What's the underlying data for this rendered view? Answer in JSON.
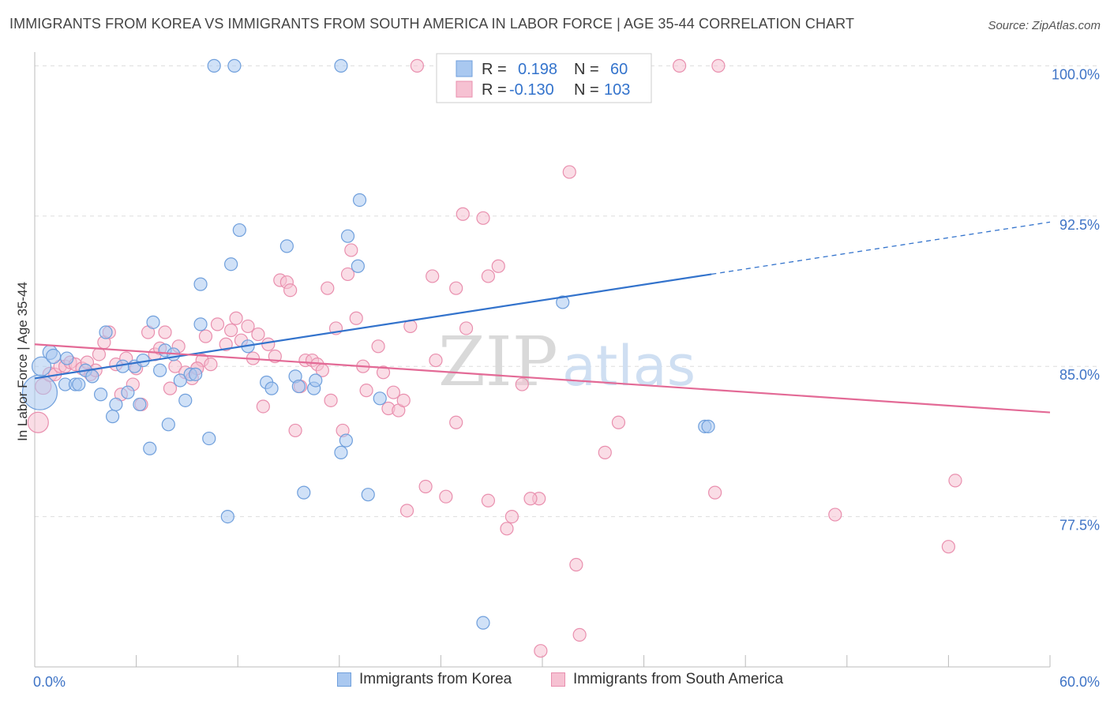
{
  "title": "IMMIGRANTS FROM KOREA VS IMMIGRANTS FROM SOUTH AMERICA IN LABOR FORCE | AGE 35-44 CORRELATION CHART",
  "source": "Source: ZipAtlas.com",
  "watermark": {
    "part1": "ZIP",
    "part2": "atlas"
  },
  "colors": {
    "korea_fill": "#a9c8f0",
    "korea_stroke": "#6f9fdc",
    "korea_line": "#3373cc",
    "sa_fill": "#f6c1d2",
    "sa_stroke": "#e98fae",
    "sa_line": "#e36a96",
    "tick_label": "#3f74c6",
    "grid": "#dddddd"
  },
  "legend": {
    "rows": [
      {
        "r_label": "R =",
        "r_value": "0.198",
        "n_label": "N =",
        "n_value": "60",
        "series": "korea"
      },
      {
        "r_label": "R =",
        "r_value": "-0.130",
        "n_label": "N =",
        "n_value": "103",
        "series": "sa"
      }
    ]
  },
  "chart_data": {
    "type": "scatter",
    "title": "IMMIGRANTS FROM KOREA VS IMMIGRANTS FROM SOUTH AMERICA IN LABOR FORCE | AGE 35-44 CORRELATION CHART",
    "xlabel": "",
    "ylabel": "In Labor Force | Age 35-44",
    "xlim": [
      0,
      60
    ],
    "ylim": [
      70.0,
      101.0
    ],
    "x_tick_labels": [
      "0.0%",
      "60.0%"
    ],
    "y_ticks": [
      77.5,
      85.0,
      92.5,
      100.0
    ],
    "y_tick_labels": [
      "77.5%",
      "85.0%",
      "92.5%",
      "100.0%"
    ],
    "grid": true,
    "legend_position": "bottom-center",
    "series": [
      {
        "name": "Immigrants from Korea",
        "key": "korea",
        "r": 0.198,
        "n": 60,
        "trend": {
          "x0": 0,
          "y0": 84.4,
          "x1": 40,
          "y1": 89.6,
          "dashed_to_x": 60,
          "dashed_to_y": 92.2
        },
        "points": [
          [
            0.3,
            83.7,
            22
          ],
          [
            0.4,
            85.0,
            12
          ],
          [
            0.9,
            85.7,
            9
          ],
          [
            1.1,
            85.5,
            9
          ],
          [
            1.9,
            85.4,
            8
          ],
          [
            1.8,
            84.1,
            8
          ],
          [
            2.4,
            84.1,
            8
          ],
          [
            2.6,
            84.1,
            8
          ],
          [
            3.0,
            84.8,
            8
          ],
          [
            3.4,
            84.5,
            8
          ],
          [
            3.9,
            83.6,
            8
          ],
          [
            4.2,
            86.7,
            8
          ],
          [
            4.6,
            82.5,
            8
          ],
          [
            4.8,
            83.1,
            8
          ],
          [
            5.2,
            85.0,
            8
          ],
          [
            5.5,
            83.7,
            8
          ],
          [
            5.9,
            85.0,
            8
          ],
          [
            6.2,
            83.1,
            8
          ],
          [
            6.4,
            85.3,
            8
          ],
          [
            6.8,
            80.9,
            8
          ],
          [
            7.0,
            87.2,
            8
          ],
          [
            7.4,
            84.8,
            8
          ],
          [
            7.7,
            85.8,
            8
          ],
          [
            7.9,
            82.1,
            8
          ],
          [
            8.2,
            85.6,
            8
          ],
          [
            8.6,
            84.3,
            8
          ],
          [
            8.9,
            83.3,
            8
          ],
          [
            9.2,
            84.6,
            8
          ],
          [
            9.5,
            84.6,
            8
          ],
          [
            9.8,
            89.1,
            8
          ],
          [
            9.8,
            87.1,
            8
          ],
          [
            10.3,
            81.4,
            8
          ],
          [
            10.6,
            100.0,
            8
          ],
          [
            11.4,
            77.5,
            8
          ],
          [
            11.6,
            90.1,
            8
          ],
          [
            11.8,
            100.0,
            8
          ],
          [
            12.1,
            91.8,
            8
          ],
          [
            12.6,
            86.0,
            8
          ],
          [
            13.7,
            84.2,
            8
          ],
          [
            14.0,
            83.9,
            8
          ],
          [
            14.9,
            91.0,
            8
          ],
          [
            15.4,
            84.5,
            8
          ],
          [
            15.6,
            84.0,
            8
          ],
          [
            15.9,
            78.7,
            8
          ],
          [
            16.5,
            83.9,
            8
          ],
          [
            16.6,
            84.3,
            8
          ],
          [
            18.1,
            100.0,
            8
          ],
          [
            18.1,
            80.7,
            8
          ],
          [
            18.4,
            81.3,
            8
          ],
          [
            18.5,
            91.5,
            8
          ],
          [
            19.1,
            90.0,
            8
          ],
          [
            19.2,
            93.3,
            8
          ],
          [
            19.7,
            78.6,
            8
          ],
          [
            20.4,
            83.4,
            8
          ],
          [
            25.4,
            100.0,
            8
          ],
          [
            26.5,
            72.2,
            8
          ],
          [
            31.2,
            88.2,
            8
          ],
          [
            33.6,
            100.0,
            8
          ],
          [
            39.6,
            82.0,
            8
          ],
          [
            39.8,
            82.0,
            1
          ]
        ]
      },
      {
        "name": "Immigrants from South America",
        "key": "sa",
        "r": -0.13,
        "n": 103,
        "trend": {
          "x0": 0,
          "y0": 86.1,
          "x1": 60,
          "y1": 82.7
        },
        "points": [
          [
            0.2,
            82.2,
            13
          ],
          [
            0.5,
            84.0,
            10
          ],
          [
            0.9,
            84.6,
            9
          ],
          [
            1.2,
            84.6,
            8
          ],
          [
            1.5,
            85.0,
            8
          ],
          [
            1.8,
            85.0,
            8
          ],
          [
            2.1,
            85.2,
            8
          ],
          [
            2.4,
            85.1,
            8
          ],
          [
            2.8,
            84.9,
            8
          ],
          [
            3.1,
            85.2,
            8
          ],
          [
            3.3,
            84.6,
            8
          ],
          [
            3.6,
            84.8,
            8
          ],
          [
            3.8,
            85.6,
            8
          ],
          [
            4.1,
            86.2,
            8
          ],
          [
            4.4,
            86.7,
            8
          ],
          [
            4.8,
            85.1,
            8
          ],
          [
            5.1,
            83.6,
            8
          ],
          [
            5.4,
            85.4,
            8
          ],
          [
            5.8,
            84.1,
            8
          ],
          [
            6.0,
            84.9,
            8
          ],
          [
            6.3,
            83.1,
            8
          ],
          [
            6.7,
            86.7,
            8
          ],
          [
            7.1,
            85.6,
            8
          ],
          [
            7.4,
            85.9,
            8
          ],
          [
            7.7,
            86.7,
            8
          ],
          [
            8.0,
            83.9,
            8
          ],
          [
            8.3,
            85.0,
            8
          ],
          [
            8.5,
            86.0,
            8
          ],
          [
            8.9,
            84.7,
            8
          ],
          [
            9.3,
            84.4,
            8
          ],
          [
            9.6,
            84.9,
            8
          ],
          [
            9.9,
            85.3,
            8
          ],
          [
            10.1,
            86.5,
            8
          ],
          [
            10.4,
            85.1,
            8
          ],
          [
            10.8,
            87.1,
            8
          ],
          [
            11.3,
            86.1,
            8
          ],
          [
            11.6,
            86.8,
            8
          ],
          [
            11.9,
            87.4,
            8
          ],
          [
            12.2,
            86.3,
            8
          ],
          [
            12.6,
            87.0,
            8
          ],
          [
            12.9,
            85.4,
            8
          ],
          [
            13.2,
            86.6,
            8
          ],
          [
            13.5,
            83.0,
            8
          ],
          [
            13.8,
            86.1,
            8
          ],
          [
            14.2,
            85.5,
            8
          ],
          [
            14.5,
            89.3,
            8
          ],
          [
            14.9,
            89.2,
            8
          ],
          [
            15.1,
            88.8,
            8
          ],
          [
            15.4,
            81.8,
            8
          ],
          [
            15.7,
            84.0,
            8
          ],
          [
            16.0,
            85.3,
            8
          ],
          [
            16.4,
            85.3,
            8
          ],
          [
            16.7,
            85.1,
            8
          ],
          [
            17.0,
            84.8,
            8
          ],
          [
            17.3,
            88.9,
            8
          ],
          [
            17.5,
            83.3,
            8
          ],
          [
            17.8,
            86.9,
            8
          ],
          [
            18.2,
            81.8,
            8
          ],
          [
            18.5,
            89.6,
            8
          ],
          [
            18.7,
            90.8,
            8
          ],
          [
            19.0,
            87.4,
            8
          ],
          [
            19.4,
            85.0,
            8
          ],
          [
            19.6,
            83.8,
            8
          ],
          [
            20.3,
            86.0,
            8
          ],
          [
            20.6,
            84.7,
            8
          ],
          [
            20.9,
            82.9,
            8
          ],
          [
            21.2,
            83.7,
            8
          ],
          [
            21.5,
            82.8,
            8
          ],
          [
            21.8,
            83.3,
            8
          ],
          [
            22.0,
            77.8,
            8
          ],
          [
            22.2,
            87.0,
            8
          ],
          [
            22.6,
            100.0,
            8
          ],
          [
            23.1,
            79.0,
            8
          ],
          [
            23.5,
            89.5,
            8
          ],
          [
            23.7,
            85.3,
            8
          ],
          [
            24.3,
            78.5,
            8
          ],
          [
            24.9,
            82.2,
            8
          ],
          [
            24.9,
            88.9,
            8
          ],
          [
            25.3,
            92.6,
            8
          ],
          [
            25.5,
            86.9,
            8
          ],
          [
            26.5,
            92.4,
            8
          ],
          [
            26.8,
            89.5,
            8
          ],
          [
            26.8,
            78.3,
            8
          ],
          [
            27.4,
            90.0,
            8
          ],
          [
            27.7,
            100.0,
            8
          ],
          [
            27.9,
            76.9,
            8
          ],
          [
            28.2,
            77.5,
            8
          ],
          [
            28.8,
            84.1,
            8
          ],
          [
            29.8,
            78.4,
            8
          ],
          [
            29.9,
            70.8,
            8
          ],
          [
            31.6,
            94.7,
            8
          ],
          [
            32.0,
            75.1,
            8
          ],
          [
            32.2,
            71.6,
            8
          ],
          [
            33.7,
            80.7,
            8
          ],
          [
            34.5,
            82.2,
            8
          ],
          [
            38.1,
            100.0,
            8
          ],
          [
            40.2,
            78.7,
            8
          ],
          [
            40.4,
            100.0,
            8
          ],
          [
            47.3,
            77.6,
            8
          ],
          [
            54.0,
            76.0,
            8
          ],
          [
            54.4,
            79.3,
            8
          ],
          [
            29.3,
            78.4,
            1
          ],
          [
            9.6,
            84.9,
            1
          ]
        ]
      }
    ]
  },
  "bottom_legend": [
    {
      "label": "Immigrants from Korea",
      "series": "korea"
    },
    {
      "label": "Immigrants from South America",
      "series": "sa"
    }
  ]
}
